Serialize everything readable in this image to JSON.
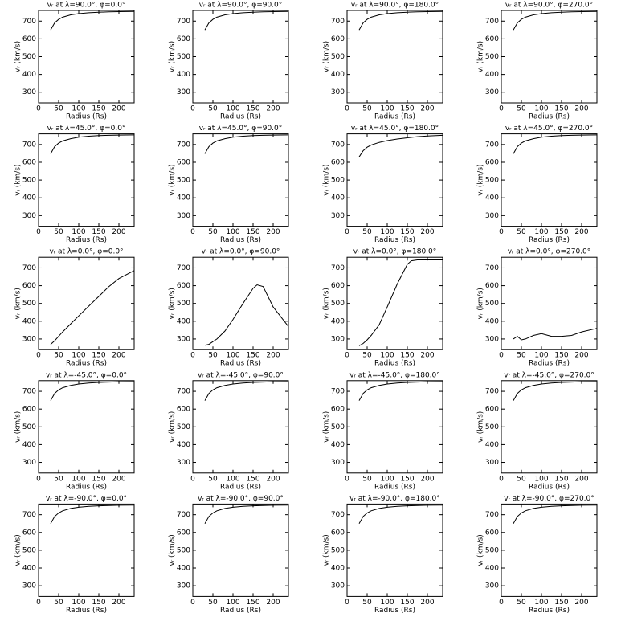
{
  "chart_data": [
    {
      "type": "line",
      "title": "vᵣ at λ=90.0°, φ=0.0°",
      "xlabel": "Radius (Rs)",
      "ylabel": "vᵣ (km/s)",
      "x": [
        30,
        40,
        50,
        60,
        80,
        100,
        125,
        150,
        175,
        200,
        238
      ],
      "values": [
        650,
        690,
        710,
        722,
        735,
        742,
        747,
        750,
        752,
        753,
        754
      ],
      "color": "#000000",
      "xlim": [
        0,
        238
      ],
      "ylim": [
        240,
        760
      ],
      "xticks": [
        0,
        50,
        100,
        150,
        200
      ],
      "yticks": [
        300,
        400,
        500,
        600,
        700
      ]
    },
    {
      "type": "line",
      "title": "vᵣ at λ=90.0°, φ=90.0°",
      "xlabel": "Radius (Rs)",
      "ylabel": "vᵣ (km/s)",
      "x": [
        30,
        40,
        50,
        60,
        80,
        100,
        125,
        150,
        175,
        200,
        238
      ],
      "values": [
        650,
        690,
        710,
        722,
        735,
        742,
        747,
        750,
        752,
        753,
        754
      ],
      "color": "#000000",
      "xlim": [
        0,
        238
      ],
      "ylim": [
        240,
        760
      ],
      "xticks": [
        0,
        50,
        100,
        150,
        200
      ],
      "yticks": [
        300,
        400,
        500,
        600,
        700
      ]
    },
    {
      "type": "line",
      "title": "vᵣ at λ=90.0°, φ=180.0°",
      "xlabel": "Radius (Rs)",
      "ylabel": "vᵣ (km/s)",
      "x": [
        30,
        40,
        50,
        60,
        80,
        100,
        125,
        150,
        175,
        200,
        238
      ],
      "values": [
        650,
        690,
        710,
        722,
        735,
        742,
        747,
        750,
        752,
        753,
        754
      ],
      "color": "#000000",
      "xlim": [
        0,
        238
      ],
      "ylim": [
        240,
        760
      ],
      "xticks": [
        0,
        50,
        100,
        150,
        200
      ],
      "yticks": [
        300,
        400,
        500,
        600,
        700
      ]
    },
    {
      "type": "line",
      "title": "vᵣ at λ=90.0°, φ=270.0°",
      "xlabel": "Radius (Rs)",
      "ylabel": "vᵣ (km/s)",
      "x": [
        30,
        40,
        50,
        60,
        80,
        100,
        125,
        150,
        175,
        200,
        238
      ],
      "values": [
        650,
        690,
        710,
        722,
        735,
        742,
        747,
        750,
        752,
        753,
        754
      ],
      "color": "#000000",
      "xlim": [
        0,
        238
      ],
      "ylim": [
        240,
        760
      ],
      "xticks": [
        0,
        50,
        100,
        150,
        200
      ],
      "yticks": [
        300,
        400,
        500,
        600,
        700
      ]
    },
    {
      "type": "line",
      "title": "vᵣ at λ=45.0°, φ=0.0°",
      "xlabel": "Radius (Rs)",
      "ylabel": "vᵣ (km/s)",
      "x": [
        30,
        40,
        50,
        60,
        80,
        100,
        125,
        150,
        175,
        200,
        238
      ],
      "values": [
        648,
        688,
        708,
        720,
        733,
        741,
        747,
        750,
        752,
        753,
        754
      ],
      "color": "#000000",
      "xlim": [
        0,
        238
      ],
      "ylim": [
        240,
        760
      ],
      "xticks": [
        0,
        50,
        100,
        150,
        200
      ],
      "yticks": [
        300,
        400,
        500,
        600,
        700
      ]
    },
    {
      "type": "line",
      "title": "vᵣ at λ=45.0°, φ=90.0°",
      "xlabel": "Radius (Rs)",
      "ylabel": "vᵣ (km/s)",
      "x": [
        30,
        40,
        50,
        60,
        80,
        100,
        125,
        150,
        175,
        200,
        238
      ],
      "values": [
        648,
        688,
        708,
        720,
        733,
        741,
        747,
        750,
        752,
        753,
        754
      ],
      "color": "#000000",
      "xlim": [
        0,
        238
      ],
      "ylim": [
        240,
        760
      ],
      "xticks": [
        0,
        50,
        100,
        150,
        200
      ],
      "yticks": [
        300,
        400,
        500,
        600,
        700
      ]
    },
    {
      "type": "line",
      "title": "vᵣ at λ=45.0°, φ=180.0°",
      "xlabel": "Radius (Rs)",
      "ylabel": "vᵣ (km/s)",
      "x": [
        30,
        40,
        50,
        60,
        80,
        100,
        125,
        150,
        175,
        200,
        238
      ],
      "values": [
        630,
        665,
        685,
        697,
        712,
        722,
        731,
        738,
        744,
        748,
        752
      ],
      "color": "#000000",
      "xlim": [
        0,
        238
      ],
      "ylim": [
        240,
        760
      ],
      "xticks": [
        0,
        50,
        100,
        150,
        200
      ],
      "yticks": [
        300,
        400,
        500,
        600,
        700
      ]
    },
    {
      "type": "line",
      "title": "vᵣ at λ=45.0°, φ=270.0°",
      "xlabel": "Radius (Rs)",
      "ylabel": "vᵣ (km/s)",
      "x": [
        30,
        40,
        50,
        60,
        80,
        100,
        125,
        150,
        175,
        200,
        238
      ],
      "values": [
        648,
        688,
        708,
        720,
        733,
        741,
        747,
        750,
        752,
        753,
        754
      ],
      "color": "#000000",
      "xlim": [
        0,
        238
      ],
      "ylim": [
        240,
        760
      ],
      "xticks": [
        0,
        50,
        100,
        150,
        200
      ],
      "yticks": [
        300,
        400,
        500,
        600,
        700
      ]
    },
    {
      "type": "line",
      "title": "vᵣ at λ=0.0°, φ=0.0°",
      "xlabel": "Radius (Rs)",
      "ylabel": "vᵣ (km/s)",
      "x": [
        30,
        40,
        50,
        60,
        80,
        100,
        125,
        150,
        175,
        200,
        238
      ],
      "values": [
        270,
        290,
        315,
        340,
        385,
        430,
        485,
        540,
        595,
        640,
        685
      ],
      "color": "#000000",
      "xlim": [
        0,
        238
      ],
      "ylim": [
        240,
        760
      ],
      "xticks": [
        0,
        50,
        100,
        150,
        200
      ],
      "yticks": [
        300,
        400,
        500,
        600,
        700
      ]
    },
    {
      "type": "line",
      "title": "vᵣ at λ=0.0°, φ=90.0°",
      "xlabel": "Radius (Rs)",
      "ylabel": "vᵣ (km/s)",
      "x": [
        30,
        40,
        50,
        60,
        80,
        100,
        125,
        150,
        160,
        175,
        200,
        238
      ],
      "values": [
        265,
        270,
        285,
        300,
        345,
        410,
        500,
        585,
        605,
        595,
        480,
        370
      ],
      "color": "#000000",
      "xlim": [
        0,
        238
      ],
      "ylim": [
        240,
        760
      ],
      "xticks": [
        0,
        50,
        100,
        150,
        200
      ],
      "yticks": [
        300,
        400,
        500,
        600,
        700
      ]
    },
    {
      "type": "line",
      "title": "vᵣ at λ=0.0°, φ=180.0°",
      "xlabel": "Radius (Rs)",
      "ylabel": "vᵣ (km/s)",
      "x": [
        30,
        40,
        50,
        60,
        80,
        100,
        125,
        150,
        160,
        175,
        200,
        238
      ],
      "values": [
        262,
        275,
        295,
        320,
        380,
        480,
        610,
        720,
        740,
        745,
        745,
        745
      ],
      "color": "#000000",
      "xlim": [
        0,
        238
      ],
      "ylim": [
        240,
        760
      ],
      "xticks": [
        0,
        50,
        100,
        150,
        200
      ],
      "yticks": [
        300,
        400,
        500,
        600,
        700
      ]
    },
    {
      "type": "line",
      "title": "vᵣ at λ=0.0°, φ=270.0°",
      "xlabel": "Radius (Rs)",
      "ylabel": "vᵣ (km/s)",
      "x": [
        30,
        40,
        50,
        60,
        80,
        100,
        125,
        150,
        175,
        200,
        238
      ],
      "values": [
        300,
        315,
        295,
        300,
        320,
        330,
        315,
        315,
        320,
        340,
        360
      ],
      "color": "#000000",
      "xlim": [
        0,
        238
      ],
      "ylim": [
        240,
        760
      ],
      "xticks": [
        0,
        50,
        100,
        150,
        200
      ],
      "yticks": [
        300,
        400,
        500,
        600,
        700
      ]
    },
    {
      "type": "line",
      "title": "vᵣ at λ=-45.0°, φ=0.0°",
      "xlabel": "Radius (Rs)",
      "ylabel": "vᵣ (km/s)",
      "x": [
        30,
        40,
        50,
        60,
        80,
        100,
        125,
        150,
        175,
        200,
        238
      ],
      "values": [
        648,
        688,
        708,
        720,
        733,
        741,
        747,
        750,
        752,
        753,
        754
      ],
      "color": "#000000",
      "xlim": [
        0,
        238
      ],
      "ylim": [
        240,
        760
      ],
      "xticks": [
        0,
        50,
        100,
        150,
        200
      ],
      "yticks": [
        300,
        400,
        500,
        600,
        700
      ]
    },
    {
      "type": "line",
      "title": "vᵣ at λ=-45.0°, φ=90.0°",
      "xlabel": "Radius (Rs)",
      "ylabel": "vᵣ (km/s)",
      "x": [
        30,
        40,
        50,
        60,
        80,
        100,
        125,
        150,
        175,
        200,
        238
      ],
      "values": [
        648,
        688,
        708,
        720,
        733,
        741,
        747,
        750,
        752,
        753,
        754
      ],
      "color": "#000000",
      "xlim": [
        0,
        238
      ],
      "ylim": [
        240,
        760
      ],
      "xticks": [
        0,
        50,
        100,
        150,
        200
      ],
      "yticks": [
        300,
        400,
        500,
        600,
        700
      ]
    },
    {
      "type": "line",
      "title": "vᵣ at λ=-45.0°, φ=180.0°",
      "xlabel": "Radius (Rs)",
      "ylabel": "vᵣ (km/s)",
      "x": [
        30,
        40,
        50,
        60,
        80,
        100,
        125,
        150,
        175,
        200,
        238
      ],
      "values": [
        648,
        688,
        708,
        720,
        733,
        741,
        747,
        750,
        752,
        753,
        754
      ],
      "color": "#000000",
      "xlim": [
        0,
        238
      ],
      "ylim": [
        240,
        760
      ],
      "xticks": [
        0,
        50,
        100,
        150,
        200
      ],
      "yticks": [
        300,
        400,
        500,
        600,
        700
      ]
    },
    {
      "type": "line",
      "title": "vᵣ at λ=-45.0°, φ=270.0°",
      "xlabel": "Radius (Rs)",
      "ylabel": "vᵣ (km/s)",
      "x": [
        30,
        40,
        50,
        60,
        80,
        100,
        125,
        150,
        175,
        200,
        238
      ],
      "values": [
        648,
        688,
        708,
        720,
        733,
        741,
        747,
        750,
        752,
        753,
        754
      ],
      "color": "#000000",
      "xlim": [
        0,
        238
      ],
      "ylim": [
        240,
        760
      ],
      "xticks": [
        0,
        50,
        100,
        150,
        200
      ],
      "yticks": [
        300,
        400,
        500,
        600,
        700
      ]
    },
    {
      "type": "line",
      "title": "vᵣ at λ=-90.0°, φ=0.0°",
      "xlabel": "Radius (Rs)",
      "ylabel": "vᵣ (km/s)",
      "x": [
        30,
        40,
        50,
        60,
        80,
        100,
        125,
        150,
        175,
        200,
        238
      ],
      "values": [
        650,
        690,
        710,
        722,
        735,
        742,
        747,
        750,
        752,
        753,
        754
      ],
      "color": "#000000",
      "xlim": [
        0,
        238
      ],
      "ylim": [
        240,
        760
      ],
      "xticks": [
        0,
        50,
        100,
        150,
        200
      ],
      "yticks": [
        300,
        400,
        500,
        600,
        700
      ]
    },
    {
      "type": "line",
      "title": "vᵣ at λ=-90.0°, φ=90.0°",
      "xlabel": "Radius (Rs)",
      "ylabel": "vᵣ (km/s)",
      "x": [
        30,
        40,
        50,
        60,
        80,
        100,
        125,
        150,
        175,
        200,
        238
      ],
      "values": [
        650,
        690,
        710,
        722,
        735,
        742,
        747,
        750,
        752,
        753,
        754
      ],
      "color": "#000000",
      "xlim": [
        0,
        238
      ],
      "ylim": [
        240,
        760
      ],
      "xticks": [
        0,
        50,
        100,
        150,
        200
      ],
      "yticks": [
        300,
        400,
        500,
        600,
        700
      ]
    },
    {
      "type": "line",
      "title": "vᵣ at λ=-90.0°, φ=180.0°",
      "xlabel": "Radius (Rs)",
      "ylabel": "vᵣ (km/s)",
      "x": [
        30,
        40,
        50,
        60,
        80,
        100,
        125,
        150,
        175,
        200,
        238
      ],
      "values": [
        650,
        690,
        710,
        722,
        735,
        742,
        747,
        750,
        752,
        753,
        754
      ],
      "color": "#000000",
      "xlim": [
        0,
        238
      ],
      "ylim": [
        240,
        760
      ],
      "xticks": [
        0,
        50,
        100,
        150,
        200
      ],
      "yticks": [
        300,
        400,
        500,
        600,
        700
      ]
    },
    {
      "type": "line",
      "title": "vᵣ at λ=-90.0°, φ=270.0°",
      "xlabel": "Radius (Rs)",
      "ylabel": "vᵣ (km/s)",
      "x": [
        30,
        40,
        50,
        60,
        80,
        100,
        125,
        150,
        175,
        200,
        238
      ],
      "values": [
        650,
        690,
        710,
        722,
        735,
        742,
        747,
        750,
        752,
        753,
        754
      ],
      "color": "#000000",
      "xlim": [
        0,
        238
      ],
      "ylim": [
        240,
        760
      ],
      "xticks": [
        0,
        50,
        100,
        150,
        200
      ],
      "yticks": [
        300,
        400,
        500,
        600,
        700
      ]
    }
  ]
}
